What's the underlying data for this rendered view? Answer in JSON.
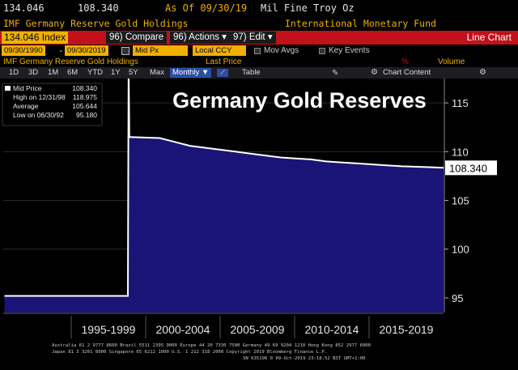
{
  "header": {
    "price": "134.046",
    "last": "108.340",
    "as_of": "As Of 09/30/19",
    "units": "Mil Fine Troy Oz"
  },
  "subheader": {
    "name": "IMF Germany Reserve Gold Holdings",
    "source": "International Monetary Fund"
  },
  "toolbar": {
    "ticker": "134.046 Index",
    "compare": "96) Compare",
    "actions": "96) Actions",
    "edit": "97) Edit",
    "view": "Line Chart"
  },
  "controls": {
    "start_date": "09/30/1990",
    "end_date": "09/30/2019",
    "mode": "Mid Px",
    "currency": "Local CCY",
    "mov_avgs": "Mov Avgs",
    "key_events": "Key Events"
  },
  "infobar": {
    "series": "IMF Germany Reserve Gold Holdings",
    "last_price": "Last Price",
    "pct": "%",
    "volume": "Volume"
  },
  "ranges": {
    "items": [
      "1D",
      "3D",
      "1M",
      "6M",
      "YTD",
      "1Y",
      "5Y",
      "Max"
    ],
    "frequency": "Monthly",
    "table": "Table",
    "chart_content": "Chart Content"
  },
  "legend": {
    "mid_price": "Mid Price",
    "mid_price_val": "108.340",
    "high": "High on 12/31/98",
    "high_val": "118.975",
    "average": "Average",
    "average_val": "105.644",
    "low": "Low on 06/30/92",
    "low_val": "95.180"
  },
  "chart_data": {
    "type": "area",
    "title": "Germany Gold Reserves",
    "x_ticks": [
      "1995-1999",
      "2000-2004",
      "2005-2009",
      "2010-2014",
      "2015-2019"
    ],
    "y_ticks": [
      95,
      100,
      105,
      110,
      115
    ],
    "ylim": [
      93.5,
      117.5
    ],
    "xlim": [
      1990.67,
      2019.75
    ],
    "last_value_label": "108.340",
    "series": [
      {
        "x": [
          1990.75,
          1998.9,
          1998.95,
          1999.0,
          2001.0,
          2002.0,
          2003.0,
          2004.0,
          2005.0,
          2006.0,
          2007.0,
          2008.0,
          2009.0,
          2010.0,
          2011.0,
          2012.0,
          2013.0,
          2014.0,
          2015.0,
          2016.0,
          2017.0,
          2018.0,
          2019.0,
          2019.75
        ],
        "y": [
          95.2,
          95.2,
          118.975,
          111.5,
          111.4,
          111.0,
          110.6,
          110.4,
          110.2,
          110.0,
          109.8,
          109.6,
          109.4,
          109.3,
          109.2,
          109.0,
          108.9,
          108.8,
          108.7,
          108.6,
          108.5,
          108.45,
          108.4,
          108.34
        ]
      }
    ]
  },
  "footer": {
    "line1": "Australia 61 2 9777 8600 Brazil 5511 2395 9000 Europe 44 20 7330 7500 Germany 49 69 9204 1210 Hong Kong 852 2977 6000",
    "line2": "Japan 81 3 3201 8900        Singapore 65 6212 1000        U.S. 1 212 318 2000        Copyright 2019 Bloomberg Finance L.P.",
    "line3": "SN 635196 0 09-Oct-2019 23:18:52 BST GMT+1:00"
  },
  "colors": {
    "fill": "#1a1477",
    "line": "#ffffff",
    "accent": "#f0b000",
    "bar": "#c2111a"
  }
}
